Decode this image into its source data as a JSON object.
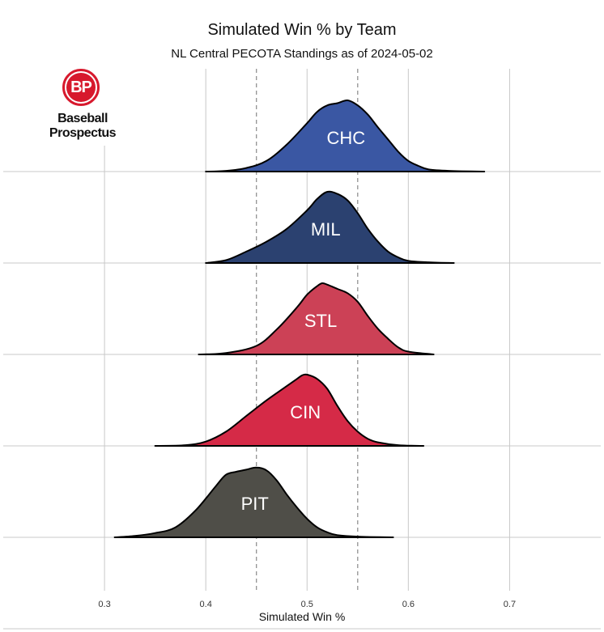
{
  "chart_data": {
    "type": "ridgeline",
    "title": "Simulated Win % by Team",
    "subtitle": "NL Central PECOTA Standings as of 2024-05-02",
    "xlabel": "Simulated Win %",
    "xlim": [
      0.2,
      0.79
    ],
    "xticks": [
      0.3,
      0.4,
      0.5,
      0.6,
      0.7
    ],
    "xtick_labels": [
      "0.3",
      "0.4",
      "0.5",
      "0.6",
      "0.7"
    ],
    "reference_lines": [
      0.45,
      0.55
    ],
    "grid": true,
    "logo": {
      "mark": "BP",
      "line1": "Baseball",
      "line2": "Prospectus"
    },
    "series": [
      {
        "name": "CHC",
        "color": "#3a57a3",
        "density": [
          [
            0.4,
            0
          ],
          [
            0.42,
            0.01
          ],
          [
            0.44,
            0.05
          ],
          [
            0.46,
            0.15
          ],
          [
            0.48,
            0.38
          ],
          [
            0.5,
            0.68
          ],
          [
            0.51,
            0.84
          ],
          [
            0.52,
            0.93
          ],
          [
            0.53,
            0.96
          ],
          [
            0.54,
            1.0
          ],
          [
            0.55,
            0.93
          ],
          [
            0.56,
            0.8
          ],
          [
            0.57,
            0.62
          ],
          [
            0.58,
            0.45
          ],
          [
            0.59,
            0.28
          ],
          [
            0.6,
            0.15
          ],
          [
            0.61,
            0.08
          ],
          [
            0.62,
            0.03
          ],
          [
            0.64,
            0.01
          ],
          [
            0.675,
            0
          ]
        ]
      },
      {
        "name": "MIL",
        "color": "#2b4170",
        "density": [
          [
            0.4,
            0
          ],
          [
            0.42,
            0.04
          ],
          [
            0.44,
            0.16
          ],
          [
            0.46,
            0.3
          ],
          [
            0.48,
            0.48
          ],
          [
            0.5,
            0.74
          ],
          [
            0.51,
            0.9
          ],
          [
            0.52,
            1.0
          ],
          [
            0.53,
            0.97
          ],
          [
            0.54,
            0.88
          ],
          [
            0.55,
            0.7
          ],
          [
            0.56,
            0.48
          ],
          [
            0.57,
            0.3
          ],
          [
            0.58,
            0.16
          ],
          [
            0.59,
            0.08
          ],
          [
            0.6,
            0.03
          ],
          [
            0.62,
            0.01
          ],
          [
            0.645,
            0
          ]
        ]
      },
      {
        "name": "STL",
        "color": "#cc4156",
        "density": [
          [
            0.393,
            0
          ],
          [
            0.42,
            0.02
          ],
          [
            0.45,
            0.12
          ],
          [
            0.47,
            0.35
          ],
          [
            0.49,
            0.66
          ],
          [
            0.5,
            0.84
          ],
          [
            0.51,
            0.96
          ],
          [
            0.515,
            1.0
          ],
          [
            0.52,
            0.98
          ],
          [
            0.53,
            0.92
          ],
          [
            0.54,
            0.86
          ],
          [
            0.55,
            0.74
          ],
          [
            0.56,
            0.54
          ],
          [
            0.57,
            0.36
          ],
          [
            0.58,
            0.22
          ],
          [
            0.59,
            0.1
          ],
          [
            0.6,
            0.04
          ],
          [
            0.625,
            0
          ]
        ]
      },
      {
        "name": "CIN",
        "color": "#d52a47",
        "density": [
          [
            0.35,
            0
          ],
          [
            0.38,
            0.01
          ],
          [
            0.4,
            0.06
          ],
          [
            0.42,
            0.2
          ],
          [
            0.44,
            0.42
          ],
          [
            0.46,
            0.64
          ],
          [
            0.48,
            0.84
          ],
          [
            0.49,
            0.94
          ],
          [
            0.495,
            0.99
          ],
          [
            0.5,
            1.0
          ],
          [
            0.51,
            0.94
          ],
          [
            0.52,
            0.8
          ],
          [
            0.53,
            0.56
          ],
          [
            0.54,
            0.35
          ],
          [
            0.55,
            0.2
          ],
          [
            0.56,
            0.1
          ],
          [
            0.57,
            0.05
          ],
          [
            0.59,
            0.01
          ],
          [
            0.615,
            0
          ]
        ]
      },
      {
        "name": "PIT",
        "color": "#4f4e48",
        "density": [
          [
            0.31,
            0
          ],
          [
            0.33,
            0.02
          ],
          [
            0.35,
            0.06
          ],
          [
            0.37,
            0.14
          ],
          [
            0.39,
            0.38
          ],
          [
            0.41,
            0.72
          ],
          [
            0.42,
            0.88
          ],
          [
            0.43,
            0.92
          ],
          [
            0.44,
            0.95
          ],
          [
            0.45,
            0.98
          ],
          [
            0.46,
            0.94
          ],
          [
            0.47,
            0.8
          ],
          [
            0.48,
            0.6
          ],
          [
            0.49,
            0.42
          ],
          [
            0.5,
            0.26
          ],
          [
            0.51,
            0.14
          ],
          [
            0.52,
            0.07
          ],
          [
            0.53,
            0.03
          ],
          [
            0.55,
            0.01
          ],
          [
            0.585,
            0
          ]
        ]
      }
    ]
  }
}
